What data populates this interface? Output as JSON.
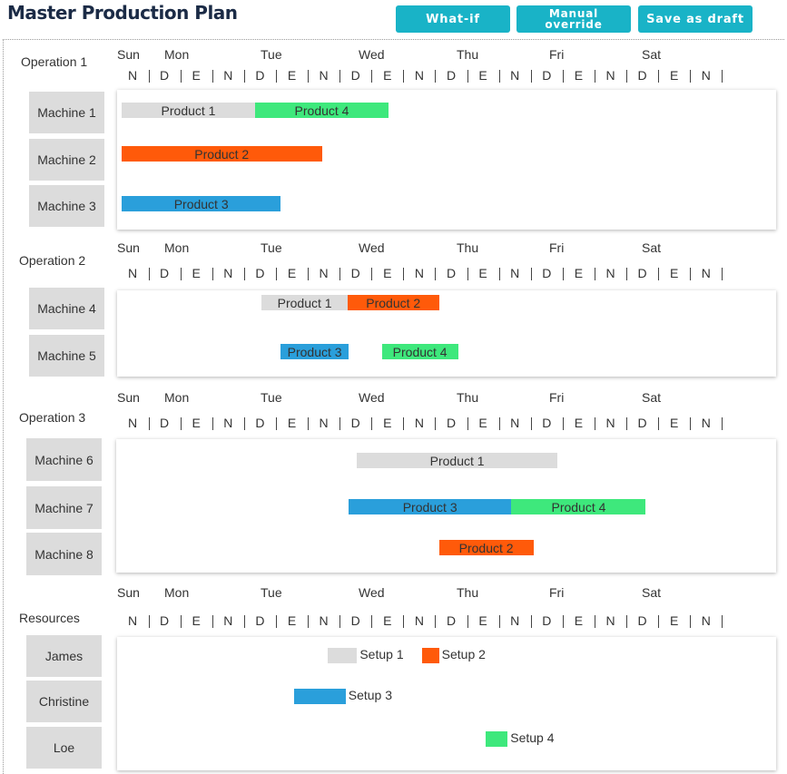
{
  "title": "Master Production Plan",
  "buttons": {
    "what_if": "What-if",
    "manual_override": "Manual\noverride",
    "save_draft": "Save as draft"
  },
  "colors": {
    "button": "#19b3c7",
    "product_1": "#dcdcdc",
    "product_2": "#ff5a0a",
    "product_3": "#2a9fdb",
    "product_4": "#3ee87c",
    "machine_box": "#dcdcdc"
  },
  "days": [
    "Sun",
    "Mon",
    "Tue",
    "Wed",
    "Thu",
    "Fri",
    "Sat"
  ],
  "shifts": [
    "N",
    "D",
    "E",
    "N",
    "D",
    "E",
    "N",
    "D",
    "E",
    "N",
    "D",
    "E",
    "N",
    "D",
    "E",
    "N",
    "D",
    "E",
    "N"
  ],
  "sections": [
    {
      "label": "Operation 1",
      "rows": [
        {
          "name": "Machine 1",
          "bars": [
            {
              "label": "Product 1",
              "color": "product_1",
              "start": 0.0,
              "end": 1.4
            },
            {
              "label": "Product 4",
              "color": "product_4",
              "start": 1.4,
              "end": 2.8
            }
          ]
        },
        {
          "name": "Machine 2",
          "bars": [
            {
              "label": "Product 2",
              "color": "product_2",
              "start": 0.0,
              "end": 2.1
            }
          ]
        },
        {
          "name": "Machine 3",
          "bars": [
            {
              "label": "Product 3",
              "color": "product_3",
              "start": 0.0,
              "end": 1.67
            }
          ]
        }
      ]
    },
    {
      "label": "Operation 2",
      "rows": [
        {
          "name": "Machine 4",
          "bars": [
            {
              "label": "Product 1",
              "color": "product_1",
              "start": 1.47,
              "end": 2.37
            },
            {
              "label": "Product 2",
              "color": "product_2",
              "start": 2.37,
              "end": 3.33
            }
          ]
        },
        {
          "name": "Machine 5",
          "bars": [
            {
              "label": "Product 3",
              "color": "product_3",
              "start": 1.67,
              "end": 2.38
            },
            {
              "label": "Product 4",
              "color": "product_4",
              "start": 2.73,
              "end": 3.53
            }
          ]
        }
      ]
    },
    {
      "label": "Operation 3",
      "rows": [
        {
          "name": "Machine 6",
          "bars": [
            {
              "label": "Product 1",
              "color": "product_1",
              "start": 2.47,
              "end": 4.57
            }
          ]
        },
        {
          "name": "Machine 7",
          "bars": [
            {
              "label": "Product 3",
              "color": "product_3",
              "start": 2.38,
              "end": 4.09
            },
            {
              "label": "Product 4",
              "color": "product_4",
              "start": 4.09,
              "end": 5.5
            }
          ]
        },
        {
          "name": "Machine 8",
          "bars": [
            {
              "label": "Product 2",
              "color": "product_2",
              "start": 3.33,
              "end": 4.32
            }
          ]
        }
      ]
    },
    {
      "label": "Resources",
      "rows": [
        {
          "name": "James",
          "setups": [
            {
              "label": "Setup 1",
              "color": "product_1",
              "start": 2.16,
              "end": 2.47
            },
            {
              "label": "Setup 2",
              "color": "product_2",
              "start": 3.15,
              "end": 3.33
            }
          ]
        },
        {
          "name": "Christine",
          "setups": [
            {
              "label": "Setup 3",
              "color": "product_3",
              "start": 1.81,
              "end": 2.35
            }
          ]
        },
        {
          "name": "Loe",
          "setups": [
            {
              "label": "Setup 4",
              "color": "product_4",
              "start": 3.82,
              "end": 4.05
            }
          ]
        }
      ]
    }
  ]
}
